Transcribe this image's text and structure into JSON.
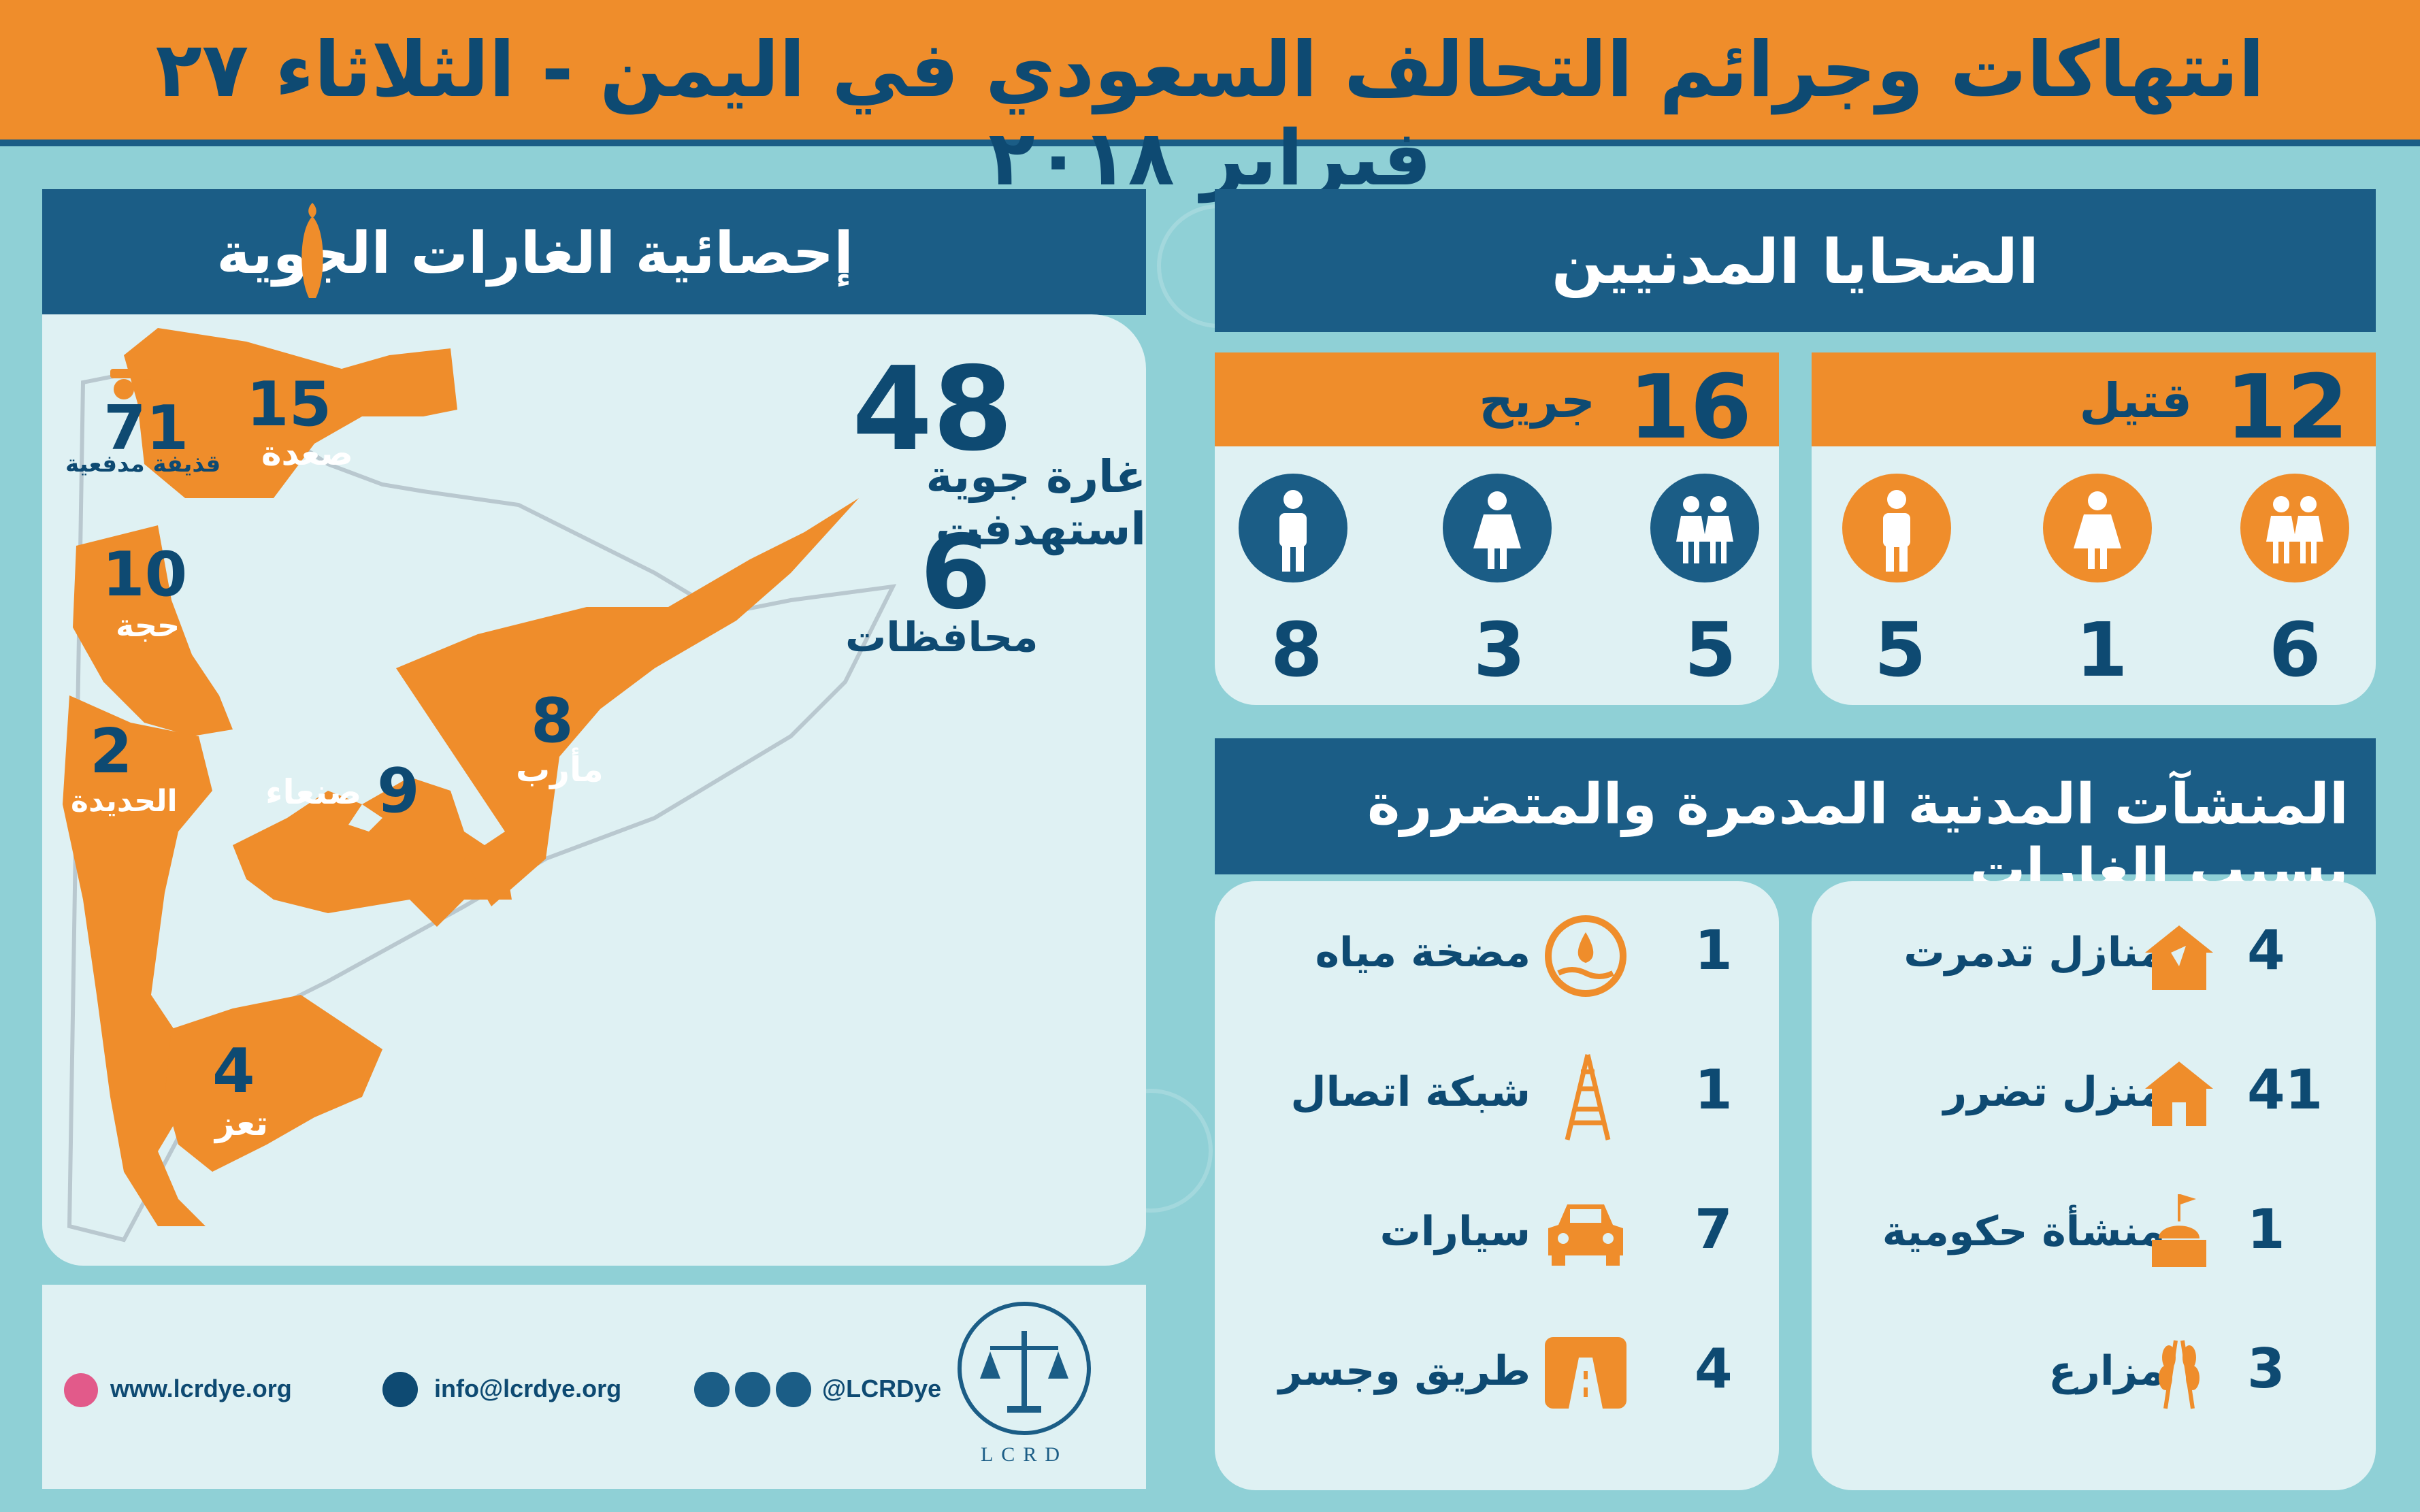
{
  "header": {
    "title": "انتهاكات وجرائم التحالف السعودي في اليمن - الثلاثاء ٢٧ فبراير ٢٠١٨"
  },
  "air_panel": {
    "title": "إحصائية الغارات الجوية",
    "total_raids": "48",
    "raids_label": "غارة جوية استهدفت",
    "governorates_count": "6",
    "governorates_label": "محافظات",
    "regions": [
      {
        "count": "15",
        "name": "صعدة"
      },
      {
        "count": "71",
        "name": "قذيفة مدفعية"
      },
      {
        "count": "10",
        "name": "حجة"
      },
      {
        "count": "2",
        "name": "الحديدة"
      },
      {
        "count": "9",
        "name": "صنعاء"
      },
      {
        "count": "8",
        "name": "مأرب"
      },
      {
        "count": "4",
        "name": "تعز"
      }
    ]
  },
  "civilians": {
    "title": "الضحايا المدنيين",
    "killed": {
      "count": "12",
      "label": "قتيل",
      "children": "6",
      "women": "1",
      "men": "5"
    },
    "injured": {
      "count": "16",
      "label": "جريح",
      "children": "5",
      "women": "3",
      "men": "8"
    }
  },
  "facilities": {
    "title": "المنشآت المدنية المدمرة والمتضررة بسبب الغارات",
    "right": [
      {
        "count": "4",
        "label": "منازل تدمرت",
        "icon": "house-destroyed-icon"
      },
      {
        "count": "41",
        "label": "منزل تضرر",
        "icon": "house-damaged-icon"
      },
      {
        "count": "1",
        "label": "منشأة حكومية",
        "icon": "government-building-icon"
      },
      {
        "count": "3",
        "label": "مزارع",
        "icon": "wheat-icon"
      }
    ],
    "left": [
      {
        "count": "1",
        "label": "مضخة مياه",
        "icon": "water-pump-icon"
      },
      {
        "count": "1",
        "label": "شبكة اتصال",
        "icon": "telecom-tower-icon"
      },
      {
        "count": "7",
        "label": "سيارات",
        "icon": "car-icon"
      },
      {
        "count": "4",
        "label": "طريق وجسر",
        "icon": "road-bridge-icon"
      }
    ]
  },
  "footer": {
    "website": "www.lcrdye.org",
    "email": "info@lcrdye.org",
    "social": "@LCRDye",
    "logo_text": "LCRD"
  },
  "colors": {
    "orange": "#ef8d2b",
    "navy": "#1b5d86",
    "panel": "#dff1f3",
    "background": "#8fd0d6"
  }
}
